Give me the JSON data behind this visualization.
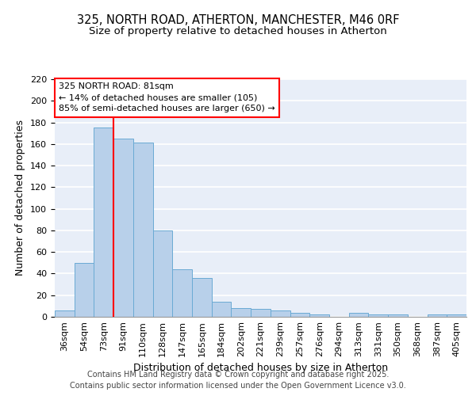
{
  "title": "325, NORTH ROAD, ATHERTON, MANCHESTER, M46 0RF",
  "subtitle": "Size of property relative to detached houses in Atherton",
  "xlabel": "Distribution of detached houses by size in Atherton",
  "ylabel": "Number of detached properties",
  "categories": [
    "36sqm",
    "54sqm",
    "73sqm",
    "91sqm",
    "110sqm",
    "128sqm",
    "147sqm",
    "165sqm",
    "184sqm",
    "202sqm",
    "221sqm",
    "239sqm",
    "257sqm",
    "276sqm",
    "294sqm",
    "313sqm",
    "331sqm",
    "350sqm",
    "368sqm",
    "387sqm",
    "405sqm"
  ],
  "values": [
    6,
    50,
    175,
    165,
    161,
    80,
    44,
    36,
    14,
    8,
    7,
    6,
    4,
    2,
    0,
    4,
    2,
    2,
    0,
    2,
    2
  ],
  "bar_color": "#b8d0ea",
  "bar_edge_color": "#6aaad4",
  "red_line_x": 2.5,
  "annotation_text": "325 NORTH ROAD: 81sqm\n← 14% of detached houses are smaller (105)\n85% of semi-detached houses are larger (650) →",
  "annotation_box_color": "white",
  "annotation_box_edge": "red",
  "background_color": "#e8eef8",
  "grid_color": "white",
  "ylim": [
    0,
    220
  ],
  "yticks": [
    0,
    20,
    40,
    60,
    80,
    100,
    120,
    140,
    160,
    180,
    200,
    220
  ],
  "footer": "Contains HM Land Registry data © Crown copyright and database right 2025.\nContains public sector information licensed under the Open Government Licence v3.0.",
  "title_fontsize": 10.5,
  "subtitle_fontsize": 9.5,
  "tick_fontsize": 8,
  "label_fontsize": 9,
  "annotation_fontsize": 8,
  "footer_fontsize": 7
}
